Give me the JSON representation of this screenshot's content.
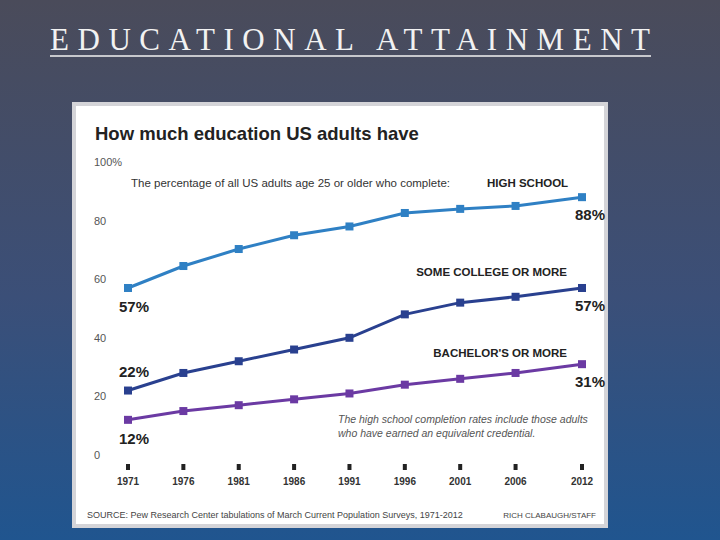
{
  "chart_data": {
    "type": "line",
    "slide_title": "EDUCATIONAL ATTAINMENT",
    "title": "How much education US adults have",
    "subtitle": "The percentage of all US adults age 25 or older who complete:",
    "annotations": [
      "The high school completion rates include those adults who have earned an equivalent credential."
    ],
    "source": "SOURCE: Pew Research Center tabulations of March Current Population Surveys, 1971-2012",
    "credit": "RICH CLABAUGH/STAFF",
    "x": [
      1971,
      1976,
      1981,
      1986,
      1991,
      1996,
      2001,
      2006,
      2012
    ],
    "xlim": [
      1971,
      2012
    ],
    "xticks": [
      1971,
      1976,
      1981,
      1986,
      1991,
      1996,
      2001,
      2006,
      2012
    ],
    "ylim": [
      0,
      100
    ],
    "yticks": [
      0,
      20,
      40,
      60,
      80,
      {
        "value": 100,
        "label": "100%"
      }
    ],
    "grid": false,
    "marker": "square",
    "series": [
      {
        "name": "HIGH SCHOOL",
        "color": "#2f80c4",
        "values": [
          57,
          64.5,
          70.3,
          75,
          78,
          82.6,
          84,
          85,
          88
        ],
        "value_labels": [
          "57%",
          null,
          null,
          null,
          null,
          null,
          null,
          null,
          "88%"
        ]
      },
      {
        "name": "SOME COLLEGE OR MORE",
        "color": "#29408f",
        "values": [
          22,
          28,
          32,
          36,
          40,
          48,
          52,
          54,
          57
        ],
        "value_labels": [
          "22%",
          null,
          null,
          null,
          null,
          null,
          null,
          null,
          "57%"
        ]
      },
      {
        "name": "BACHELOR'S OR MORE",
        "color": "#6b3aa3",
        "values": [
          12,
          15,
          17,
          19,
          21,
          24,
          26,
          28,
          31
        ],
        "value_labels": [
          "12%",
          null,
          null,
          null,
          null,
          null,
          null,
          null,
          "31%"
        ]
      }
    ]
  }
}
